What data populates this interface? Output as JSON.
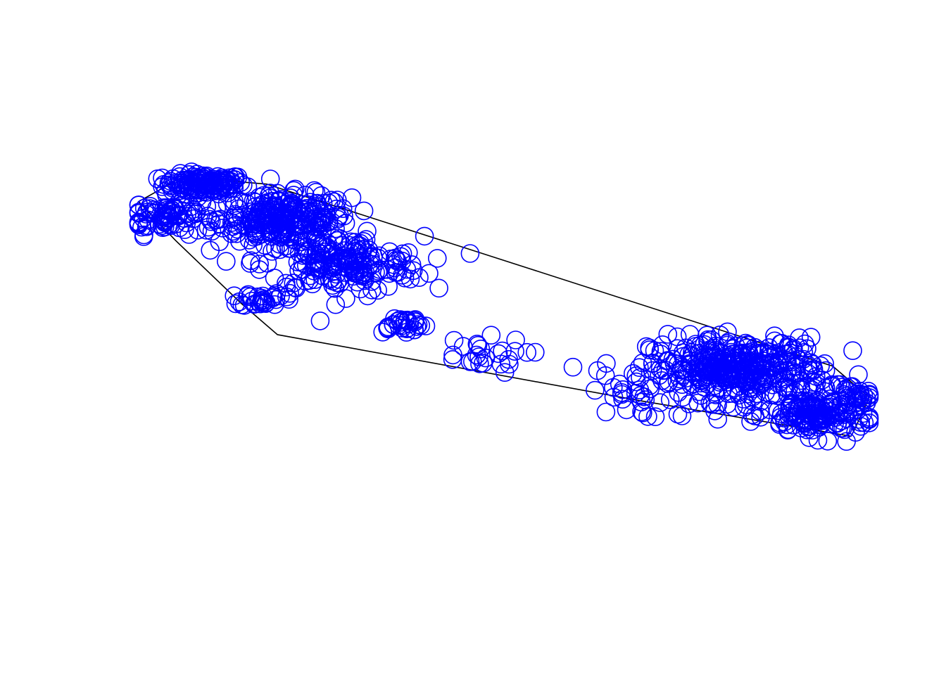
{
  "chart_data": {
    "type": "scatter",
    "title": "",
    "xlabel": "",
    "ylabel": "",
    "axes_visible": false,
    "grid": false,
    "legend": "none",
    "marker": "open-circle",
    "colors": {
      "points": "#0000ff",
      "hull": "#000000",
      "background": "#ffffff"
    },
    "xlim": [
      0,
      1
    ],
    "ylim": [
      0,
      1
    ],
    "hull": [
      [
        0.0,
        0.85
      ],
      [
        0.06,
        0.92
      ],
      [
        0.175,
        0.9
      ],
      [
        0.95,
        0.38
      ],
      [
        1.0,
        0.29
      ],
      [
        0.98,
        0.2
      ],
      [
        0.975,
        0.18
      ],
      [
        0.69,
        0.28
      ],
      [
        0.19,
        0.47
      ],
      [
        0.14,
        0.56
      ],
      [
        0.05,
        0.74
      ]
    ],
    "clusters": [
      {
        "cx": 0.09,
        "cy": 0.9,
        "sx": 0.028,
        "sy": 0.014,
        "n": 140
      },
      {
        "cx": 0.04,
        "cy": 0.81,
        "sx": 0.032,
        "sy": 0.026,
        "n": 90
      },
      {
        "cx": 0.2,
        "cy": 0.8,
        "sx": 0.045,
        "sy": 0.035,
        "n": 260
      },
      {
        "cx": 0.28,
        "cy": 0.67,
        "sx": 0.055,
        "sy": 0.04,
        "n": 200
      },
      {
        "cx": 0.17,
        "cy": 0.57,
        "sx": 0.015,
        "sy": 0.01,
        "n": 30
      },
      {
        "cx": 0.36,
        "cy": 0.5,
        "sx": 0.018,
        "sy": 0.012,
        "n": 30
      },
      {
        "cx": 0.46,
        "cy": 0.41,
        "sx": 0.035,
        "sy": 0.025,
        "n": 25
      },
      {
        "cx": 0.67,
        "cy": 0.3,
        "sx": 0.025,
        "sy": 0.035,
        "n": 25
      },
      {
        "cx": 0.82,
        "cy": 0.37,
        "sx": 0.06,
        "sy": 0.045,
        "n": 400
      },
      {
        "cx": 0.93,
        "cy": 0.24,
        "sx": 0.035,
        "sy": 0.03,
        "n": 160
      },
      {
        "cx": 0.98,
        "cy": 0.29,
        "sx": 0.012,
        "sy": 0.012,
        "n": 25
      }
    ]
  }
}
